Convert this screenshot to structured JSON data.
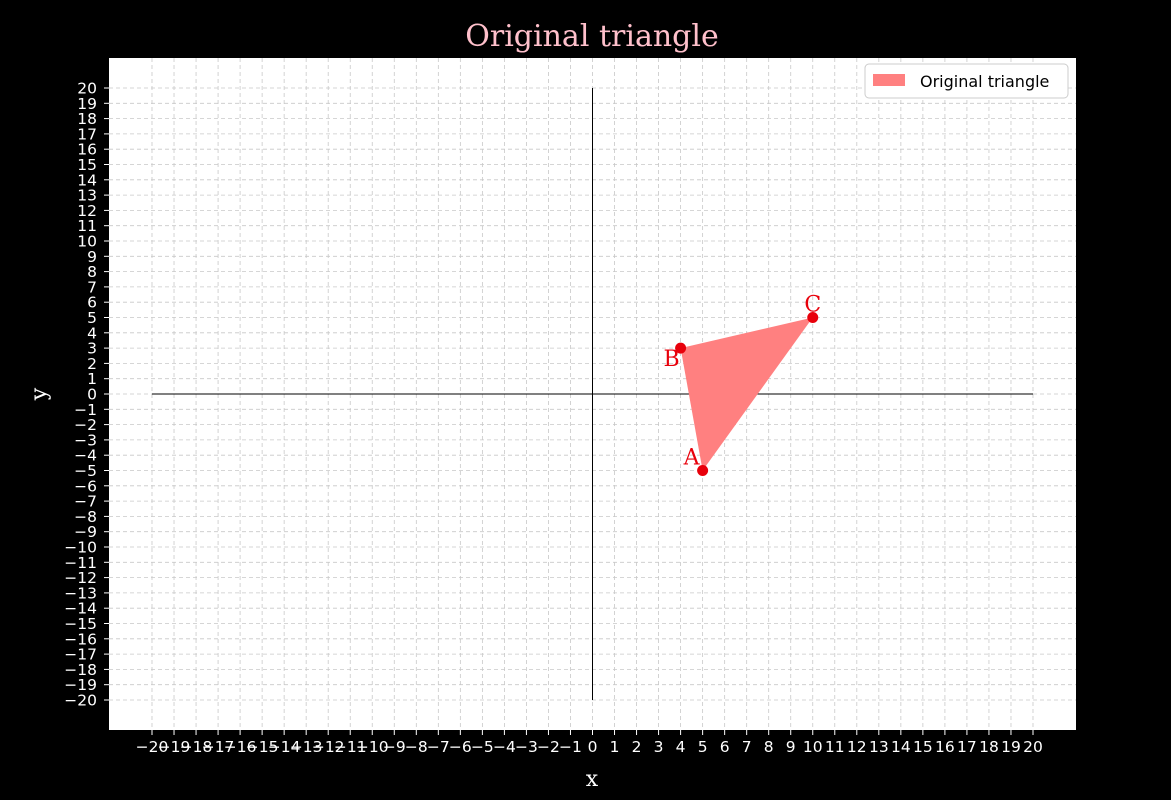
{
  "chart_data": {
    "type": "area",
    "title": "Original triangle",
    "xlabel": "x",
    "ylabel": "y",
    "xlim": [
      -20,
      20
    ],
    "ylim": [
      -20,
      20
    ],
    "grid": true,
    "grid_style": "dashed",
    "x_ticks": [
      -20,
      -19,
      -18,
      -17,
      -16,
      -15,
      -14,
      -13,
      -12,
      -11,
      -10,
      -9,
      -8,
      -7,
      -6,
      -5,
      -4,
      -3,
      -2,
      -1,
      0,
      1,
      2,
      3,
      4,
      5,
      6,
      7,
      8,
      9,
      10,
      11,
      12,
      13,
      14,
      15,
      16,
      17,
      18,
      19,
      20
    ],
    "y_ticks": [
      -20,
      -19,
      -18,
      -17,
      -16,
      -15,
      -14,
      -13,
      -12,
      -11,
      -10,
      -9,
      -8,
      -7,
      -6,
      -5,
      -4,
      -3,
      -2,
      -1,
      0,
      1,
      2,
      3,
      4,
      5,
      6,
      7,
      8,
      9,
      10,
      11,
      12,
      13,
      14,
      15,
      16,
      17,
      18,
      19,
      20
    ],
    "series": [
      {
        "name": "Original triangle",
        "points": [
          {
            "label": "A",
            "x": 5,
            "y": -5
          },
          {
            "label": "B",
            "x": 4,
            "y": 3
          },
          {
            "label": "C",
            "x": 10,
            "y": 5
          }
        ]
      }
    ],
    "legend": {
      "position": "top-right",
      "entries": [
        "Original triangle"
      ]
    },
    "colors": {
      "figure_bg": "#000000",
      "plot_bg": "#ffffff",
      "title": "#ffc0cb",
      "fill": "#ff8080",
      "point": "#e8000b",
      "point_label": "#e8000b",
      "axes_lines": "#000000",
      "grid": "#c8c8c8"
    }
  }
}
